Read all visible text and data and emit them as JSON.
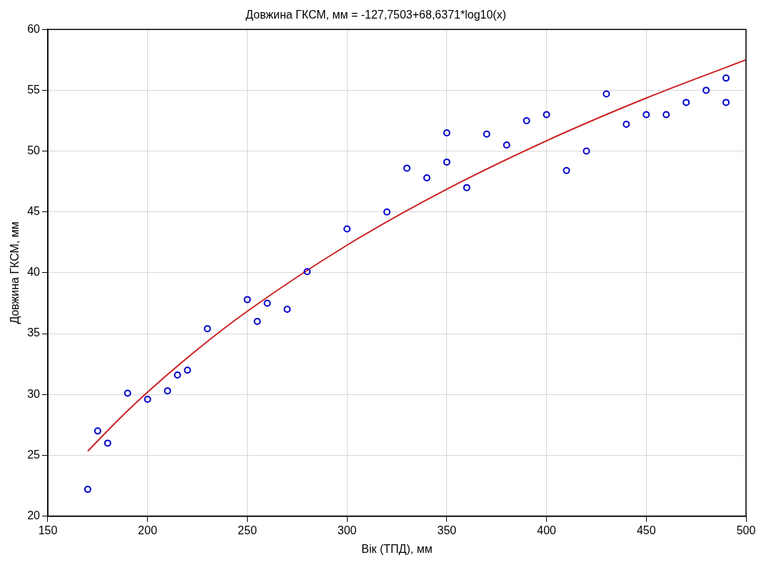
{
  "chart_data": {
    "type": "scatter",
    "title": "Довжина ГКСМ, мм = -127,7503+68,6371*log10(x)",
    "xlabel": "Вік (ТПД), мм",
    "ylabel": "Довжина ГКСМ, мм",
    "xlim": [
      150,
      500
    ],
    "xticks": [
      150,
      200,
      250,
      300,
      350,
      400,
      450,
      500
    ],
    "ylim": [
      20,
      60
    ],
    "yticks": [
      20,
      25,
      30,
      35,
      40,
      45,
      50,
      55,
      60
    ],
    "grid": true,
    "legend": false,
    "series": [
      {
        "type": "scatter",
        "marker": "circle",
        "color": "#0000cc",
        "x": [
          170,
          175,
          180,
          190,
          200,
          210,
          215,
          220,
          230,
          250,
          255,
          260,
          270,
          280,
          300,
          320,
          330,
          340,
          350,
          350,
          360,
          370,
          380,
          390,
          400,
          410,
          420,
          430,
          440,
          450,
          460,
          470,
          480,
          490,
          490
        ],
        "values": [
          22.2,
          27.0,
          26.0,
          30.1,
          29.6,
          30.3,
          31.6,
          32.0,
          35.4,
          37.8,
          36.0,
          37.5,
          37.0,
          40.1,
          43.6,
          45.0,
          48.6,
          47.8,
          49.1,
          51.5,
          47.0,
          51.4,
          50.5,
          52.5,
          53.0,
          48.4,
          50.0,
          54.7,
          52.2,
          53.0,
          53.0,
          54.0,
          55.0,
          56.0,
          54.0
        ]
      },
      {
        "type": "line",
        "marker": "none",
        "color": "#cc2222",
        "x": [
          170,
          185,
          200,
          225,
          250,
          300,
          350,
          400,
          450,
          500
        ],
        "values": [
          25.34,
          27.86,
          30.19,
          33.7,
          36.84,
          42.27,
          46.87,
          50.85,
          54.36,
          57.5
        ]
      }
    ]
  }
}
